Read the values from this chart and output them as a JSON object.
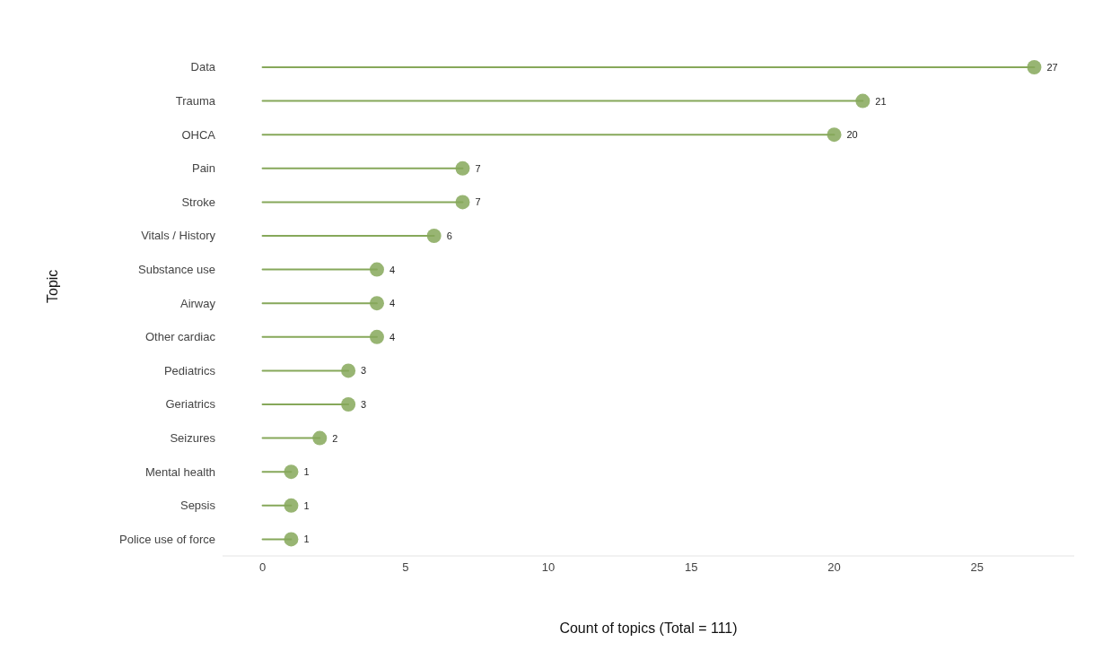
{
  "chart_data": {
    "type": "lollipop",
    "orientation": "horizontal",
    "xlabel": "Count of topics (Total = 111)",
    "ylabel": "Topic",
    "categories": [
      "Data",
      "Trauma",
      "OHCA",
      "Pain",
      "Stroke",
      "Vitals / History",
      "Substance use",
      "Airway",
      "Other cardiac",
      "Pediatrics",
      "Geriatrics",
      "Seizures",
      "Mental health",
      "Sepsis",
      "Police use of force"
    ],
    "values": [
      27,
      21,
      20,
      7,
      7,
      6,
      4,
      4,
      4,
      3,
      3,
      2,
      1,
      1,
      1
    ],
    "color": "#86a85a",
    "xlim": [
      -1.4,
      28.4
    ],
    "xticks": [
      0,
      5,
      10,
      15,
      20,
      25
    ],
    "grid": false,
    "legend": false,
    "marker": "circle",
    "data_labels": true
  }
}
